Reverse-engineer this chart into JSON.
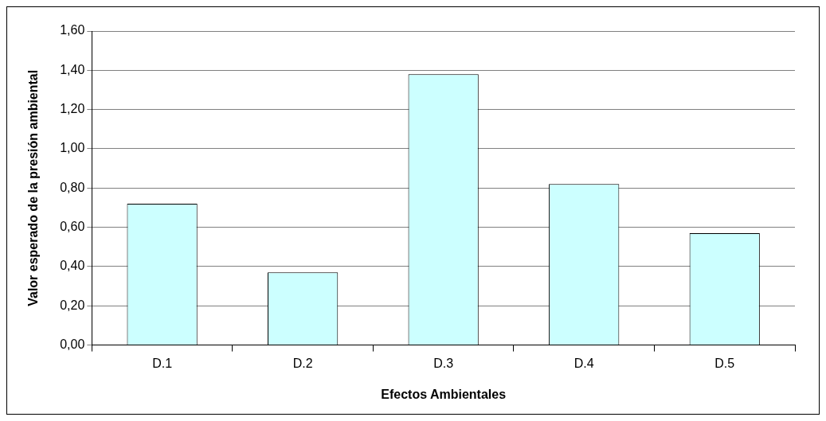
{
  "chart_data": {
    "type": "bar",
    "xlabel": "Efectos Ambientales",
    "ylabel": "Valor esperado de la presión ambiental",
    "categories": [
      "D.1",
      "D.2",
      "D.3",
      "D.4",
      "D.5"
    ],
    "values": [
      0.72,
      0.37,
      1.38,
      0.82,
      0.57
    ],
    "color": "#ccffff",
    "ylim": [
      0,
      1.6
    ],
    "yticks": [
      {
        "value": 0,
        "label": "0,00"
      },
      {
        "value": 0.2,
        "label": "0,20"
      },
      {
        "value": 0.4,
        "label": "0,40"
      },
      {
        "value": 0.6,
        "label": "0,60"
      },
      {
        "value": 0.8,
        "label": "0,80"
      },
      {
        "value": 1.0,
        "label": "1,00"
      },
      {
        "value": 1.2,
        "label": "1,20"
      },
      {
        "value": 1.4,
        "label": "1,40"
      },
      {
        "value": 1.6,
        "label": "1,60"
      }
    ],
    "grid": "y",
    "legend": false
  }
}
